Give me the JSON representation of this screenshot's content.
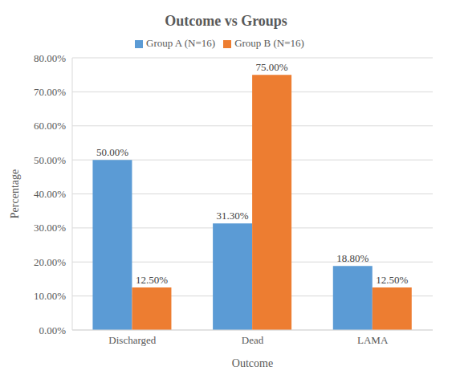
{
  "chart_data": {
    "type": "bar",
    "title": "Outcome vs Groups",
    "x_label": "Outcome",
    "y_label": "Percentage",
    "categories": [
      "Discharged",
      "Dead",
      "LAMA"
    ],
    "series": [
      {
        "name": "Group A (N=16)",
        "color": "#5b9bd5",
        "values": [
          50,
          31.3,
          18.8
        ],
        "value_labels": [
          "50.00%",
          "31.30%",
          "18.80%"
        ]
      },
      {
        "name": "Group B (N=16)",
        "color": "#ed7d31",
        "values": [
          12.5,
          75,
          12.5
        ],
        "value_labels": [
          "12.50%",
          "75.00%",
          "12.50%"
        ]
      }
    ],
    "ylim": [
      0,
      80
    ],
    "yticks": [
      {
        "value": 0,
        "label": "0.00%"
      },
      {
        "value": 10,
        "label": "10.00%"
      },
      {
        "value": 20,
        "label": "20.00%"
      },
      {
        "value": 30,
        "label": "30.00%"
      },
      {
        "value": 40,
        "label": "40.00%"
      },
      {
        "value": 50,
        "label": "50.00%"
      },
      {
        "value": 60,
        "label": "60.00%"
      },
      {
        "value": 70,
        "label": "70.00%"
      },
      {
        "value": 80,
        "label": "80.00%"
      }
    ],
    "grid": true,
    "legend": "top",
    "data_labels": true
  }
}
